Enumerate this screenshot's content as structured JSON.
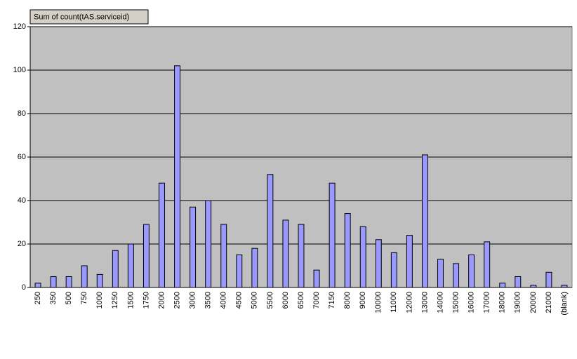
{
  "chart_data": {
    "type": "bar",
    "title": "Sum of count(tAS.serviceid)",
    "categories": [
      "250",
      "350",
      "500",
      "750",
      "1000",
      "1250",
      "1500",
      "1750",
      "2000",
      "2500",
      "3000",
      "3500",
      "4000",
      "4500",
      "5000",
      "5500",
      "6000",
      "6500",
      "7000",
      "7150",
      "8000",
      "9000",
      "10000",
      "11000",
      "12000",
      "13000",
      "14000",
      "15000",
      "16000",
      "17000",
      "18000",
      "19000",
      "20000",
      "21000",
      "(blank)"
    ],
    "values": [
      2,
      5,
      5,
      10,
      6,
      17,
      20,
      29,
      48,
      102,
      37,
      40,
      29,
      15,
      18,
      52,
      31,
      29,
      8,
      48,
      34,
      28,
      22,
      16,
      24,
      61,
      13,
      11,
      15,
      21,
      2,
      5,
      1,
      7,
      1
    ],
    "color": "#9999ff",
    "ylim": [
      0,
      120
    ],
    "yticks": [
      0,
      20,
      40,
      60,
      80,
      100,
      120
    ],
    "grid": true
  }
}
